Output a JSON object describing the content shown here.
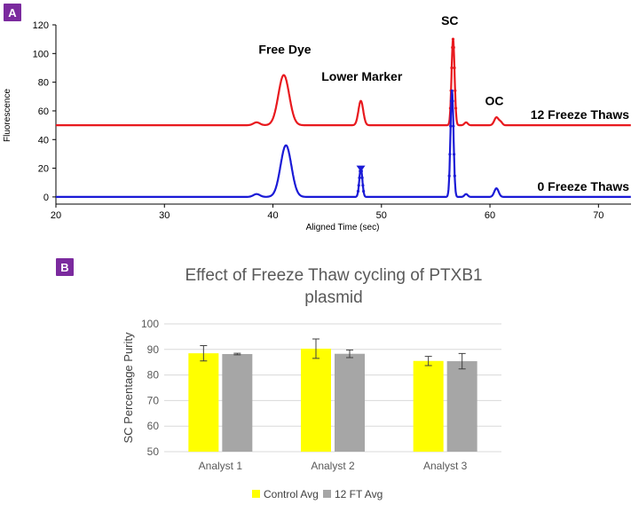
{
  "figure": {
    "panel_a_label": "A",
    "panel_b_label": "B"
  },
  "chart_data": [
    {
      "type": "line",
      "panel": "A",
      "xlabel": "Aligned Time (sec)",
      "ylabel": "Fluorescence",
      "xlim": [
        20,
        73
      ],
      "ylim": [
        -5,
        120
      ],
      "xticks": [
        20,
        30,
        40,
        50,
        60,
        70
      ],
      "yticks": [
        0,
        20,
        40,
        60,
        80,
        100,
        120
      ],
      "grid": false,
      "annotations": [
        {
          "text": "Free Dye",
          "x": 41.1,
          "y": 100
        },
        {
          "text": "Lower Marker",
          "x": 48.2,
          "y": 81
        },
        {
          "text": "SC",
          "x": 56.3,
          "y": 120
        },
        {
          "text": "OC",
          "x": 60.4,
          "y": 64
        }
      ],
      "series": [
        {
          "name": "12 Freeze Thaws",
          "color": "#e8191e",
          "baseline": 50,
          "peaks": [
            {
              "x": 38.5,
              "h": 2,
              "w": 0.3
            },
            {
              "x": 41.0,
              "h": 35,
              "w": 0.5
            },
            {
              "x": 48.1,
              "h": 17,
              "w": 0.22
            },
            {
              "x": 56.6,
              "h": 60,
              "w": 0.14
            },
            {
              "x": 57.8,
              "h": 2,
              "w": 0.15
            },
            {
              "x": 60.6,
              "h": 5.5,
              "w": 0.2
            },
            {
              "x": 61.0,
              "h": 2,
              "w": 0.15
            }
          ]
        },
        {
          "name": "0 Freeze Thaws",
          "color": "#1a1ad6",
          "baseline": 0,
          "peaks": [
            {
              "x": 38.5,
              "h": 2,
              "w": 0.3
            },
            {
              "x": 41.2,
              "h": 36,
              "w": 0.5
            },
            {
              "x": 48.1,
              "h": 20,
              "w": 0.14
            },
            {
              "x": 56.5,
              "h": 74,
              "w": 0.14
            },
            {
              "x": 57.8,
              "h": 2,
              "w": 0.15
            },
            {
              "x": 60.6,
              "h": 6,
              "w": 0.2
            }
          ]
        }
      ]
    },
    {
      "type": "bar",
      "panel": "B",
      "title": "Effect of Freeze Thaw cycling of PTXB1 plasmid",
      "title_lines": [
        "Effect of Freeze Thaw cycling of PTXB1",
        "plasmid"
      ],
      "ylabel": "SC Percentage Purity",
      "ylim": [
        50,
        100
      ],
      "yticks": [
        50,
        60,
        70,
        80,
        90,
        100
      ],
      "grid": true,
      "legend_position": "bottom",
      "categories": [
        "Analyst 1",
        "Analyst 2",
        "Analyst 3"
      ],
      "series": [
        {
          "name": "Control Avg",
          "color": "#ffff00",
          "values": [
            88.5,
            90.3,
            85.5
          ],
          "errors": [
            3.0,
            3.8,
            1.8
          ]
        },
        {
          "name": "12 FT Avg",
          "color": "#a6a6a6",
          "values": [
            88.2,
            88.3,
            85.4
          ],
          "errors": [
            0.3,
            1.5,
            3.0
          ]
        }
      ]
    }
  ]
}
